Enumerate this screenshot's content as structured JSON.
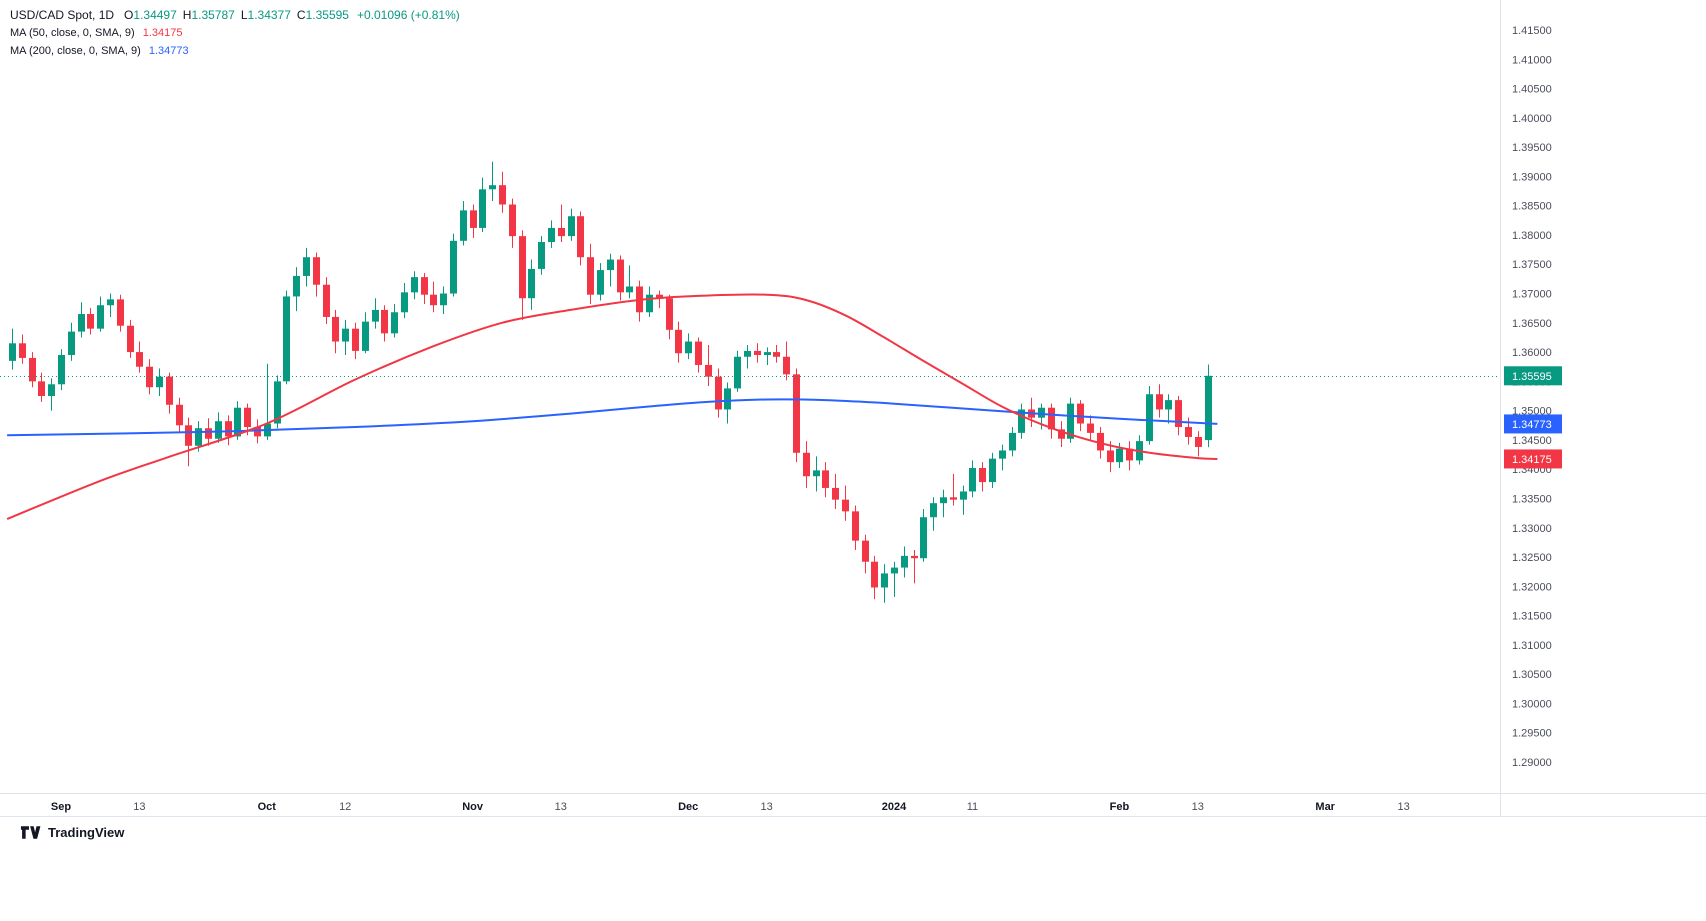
{
  "legend": {
    "symbol": "USD/CAD Spot, 1D",
    "ohlc": [
      {
        "label": "O",
        "value": "1.34497"
      },
      {
        "label": "H",
        "value": "1.35787"
      },
      {
        "label": "L",
        "value": "1.34377"
      },
      {
        "label": "C",
        "value": "1.35595"
      }
    ],
    "change": "+0.01096 (+0.81%)",
    "ma50": {
      "label": "MA (50, close, 0, SMA, 9)",
      "value": "1.34175"
    },
    "ma200": {
      "label": "MA (200, close, 0, SMA, 9)",
      "value": "1.34773"
    }
  },
  "footer": {
    "brand": "TradingView"
  },
  "colors": {
    "up": "#089981",
    "down": "#F23645",
    "ma50": "#F23645",
    "ma200": "#2962FF",
    "price_line": "#089981",
    "axis_text": "#4a4e59",
    "axis_line": "#e0e3eb",
    "text_dark": "#131722"
  },
  "chart_data": {
    "type": "candlestick",
    "title": "USD/CAD Spot, 1D",
    "symbol": "USD/CAD Spot",
    "timeframe": "1D",
    "last": {
      "open": 1.34497,
      "high": 1.35787,
      "low": 1.34377,
      "close": 1.35595,
      "change": "+0.01096",
      "change_pct": "+0.81%"
    },
    "price_line": 1.35595,
    "y_axis": {
      "min": 1.29,
      "max": 1.415,
      "step": 0.005,
      "decimals": 5
    },
    "x_axis": {
      "ticks": [
        {
          "label": "Sep",
          "i": 6,
          "major": true
        },
        {
          "label": "13",
          "i": 14,
          "major": false
        },
        {
          "label": "Oct",
          "i": 27,
          "major": true
        },
        {
          "label": "12",
          "i": 35,
          "major": false
        },
        {
          "label": "Nov",
          "i": 48,
          "major": true
        },
        {
          "label": "13",
          "i": 57,
          "major": false
        },
        {
          "label": "Dec",
          "i": 70,
          "major": true
        },
        {
          "label": "13",
          "i": 78,
          "major": false
        },
        {
          "label": "2024",
          "i": 91,
          "major": true
        },
        {
          "label": "11",
          "i": 99,
          "major": false
        },
        {
          "label": "Feb",
          "i": 114,
          "major": true
        },
        {
          "label": "13",
          "i": 122,
          "major": false
        },
        {
          "label": "Mar",
          "i": 135,
          "major": true
        },
        {
          "label": "13",
          "i": 143,
          "major": false
        }
      ]
    },
    "badges": [
      {
        "text": "1.35595",
        "price": 1.35595,
        "color": "#089981"
      },
      {
        "text": "1.34773",
        "price": 1.34773,
        "color": "#2962FF"
      },
      {
        "text": "1.34175",
        "price": 1.34175,
        "color": "#F23645"
      }
    ],
    "ma50": {
      "period": 50,
      "color": "#F23645",
      "points": [
        [
          0.5,
          1.3315
        ],
        [
          10,
          1.338
        ],
        [
          17,
          1.3421
        ],
        [
          27,
          1.3478
        ],
        [
          36,
          1.3553
        ],
        [
          44,
          1.361
        ],
        [
          51,
          1.365
        ],
        [
          58,
          1.3672
        ],
        [
          65,
          1.3689
        ],
        [
          71,
          1.3696
        ],
        [
          78,
          1.3698
        ],
        [
          82,
          1.3689
        ],
        [
          86,
          1.3663
        ],
        [
          90,
          1.3625
        ],
        [
          94,
          1.3585
        ],
        [
          98,
          1.3546
        ],
        [
          102,
          1.3507
        ],
        [
          106,
          1.3477
        ],
        [
          110,
          1.3454
        ],
        [
          114,
          1.3437
        ],
        [
          118,
          1.3426
        ],
        [
          122,
          1.3419
        ],
        [
          124,
          1.34175
        ]
      ]
    },
    "ma200": {
      "period": 200,
      "color": "#2962FF",
      "points": [
        [
          0.5,
          1.3458
        ],
        [
          12,
          1.3461
        ],
        [
          24,
          1.3465
        ],
        [
          36,
          1.3472
        ],
        [
          48,
          1.3482
        ],
        [
          58,
          1.3495
        ],
        [
          66,
          1.3507
        ],
        [
          72,
          1.3515
        ],
        [
          78,
          1.3519
        ],
        [
          84,
          1.3518
        ],
        [
          90,
          1.3513
        ],
        [
          96,
          1.3506
        ],
        [
          102,
          1.3499
        ],
        [
          108,
          1.3492
        ],
        [
          114,
          1.3486
        ],
        [
          120,
          1.3481
        ],
        [
          124,
          1.34773
        ]
      ]
    },
    "candles": [
      [
        1.3585,
        1.364,
        1.357,
        1.3615
      ],
      [
        1.3615,
        1.363,
        1.358,
        1.359
      ],
      [
        1.359,
        1.36,
        1.354,
        1.355
      ],
      [
        1.355,
        1.3565,
        1.3515,
        1.3525
      ],
      [
        1.3525,
        1.3555,
        1.35,
        1.3545
      ],
      [
        1.3545,
        1.3605,
        1.3535,
        1.3595
      ],
      [
        1.3595,
        1.365,
        1.3585,
        1.3635
      ],
      [
        1.3635,
        1.3685,
        1.3625,
        1.3665
      ],
      [
        1.3665,
        1.3675,
        1.363,
        1.364
      ],
      [
        1.364,
        1.3695,
        1.3635,
        1.368
      ],
      [
        1.368,
        1.37,
        1.366,
        1.369
      ],
      [
        1.369,
        1.3698,
        1.3635,
        1.3645
      ],
      [
        1.3645,
        1.3655,
        1.359,
        1.36
      ],
      [
        1.36,
        1.3618,
        1.3565,
        1.3575
      ],
      [
        1.3575,
        1.3588,
        1.3528,
        1.354
      ],
      [
        1.354,
        1.3572,
        1.3525,
        1.3558
      ],
      [
        1.3558,
        1.3565,
        1.3495,
        1.351
      ],
      [
        1.351,
        1.3522,
        1.3462,
        1.3475
      ],
      [
        1.3475,
        1.3488,
        1.3405,
        1.344
      ],
      [
        1.344,
        1.3482,
        1.343,
        1.347
      ],
      [
        1.347,
        1.3487,
        1.344,
        1.3452
      ],
      [
        1.3452,
        1.3497,
        1.3445,
        1.3482
      ],
      [
        1.3482,
        1.3492,
        1.3441,
        1.3456
      ],
      [
        1.3456,
        1.3516,
        1.345,
        1.3505
      ],
      [
        1.3505,
        1.3512,
        1.3458,
        1.3472
      ],
      [
        1.3472,
        1.3485,
        1.3444,
        1.3456
      ],
      [
        1.3456,
        1.358,
        1.345,
        1.3478
      ],
      [
        1.3478,
        1.356,
        1.347,
        1.355
      ],
      [
        1.355,
        1.3705,
        1.3545,
        1.3695
      ],
      [
        1.3695,
        1.3745,
        1.367,
        1.373
      ],
      [
        1.373,
        1.3778,
        1.3712,
        1.3762
      ],
      [
        1.3762,
        1.377,
        1.3695,
        1.3715
      ],
      [
        1.3715,
        1.3728,
        1.3648,
        1.366
      ],
      [
        1.366,
        1.3672,
        1.3598,
        1.3618
      ],
      [
        1.3618,
        1.3655,
        1.3595,
        1.364
      ],
      [
        1.364,
        1.365,
        1.3588,
        1.3602
      ],
      [
        1.3602,
        1.3668,
        1.3598,
        1.3652
      ],
      [
        1.3652,
        1.3692,
        1.364,
        1.3672
      ],
      [
        1.3672,
        1.368,
        1.3618,
        1.3632
      ],
      [
        1.3632,
        1.3682,
        1.3625,
        1.3668
      ],
      [
        1.3668,
        1.3718,
        1.3658,
        1.3702
      ],
      [
        1.3702,
        1.3738,
        1.369,
        1.3728
      ],
      [
        1.3728,
        1.3735,
        1.3682,
        1.3698
      ],
      [
        1.3698,
        1.372,
        1.3668,
        1.368
      ],
      [
        1.368,
        1.3712,
        1.3665,
        1.37
      ],
      [
        1.37,
        1.3802,
        1.3695,
        1.379
      ],
      [
        1.379,
        1.3858,
        1.3782,
        1.3842
      ],
      [
        1.3842,
        1.3852,
        1.3795,
        1.3812
      ],
      [
        1.3812,
        1.3898,
        1.3805,
        1.3878
      ],
      [
        1.3878,
        1.3925,
        1.3858,
        1.3885
      ],
      [
        1.3885,
        1.3908,
        1.3838,
        1.3852
      ],
      [
        1.3852,
        1.3862,
        1.3778,
        1.3798
      ],
      [
        1.3798,
        1.3808,
        1.3655,
        1.3692
      ],
      [
        1.3692,
        1.3758,
        1.3672,
        1.3742
      ],
      [
        1.3742,
        1.3798,
        1.3732,
        1.3788
      ],
      [
        1.3788,
        1.3825,
        1.3778,
        1.3812
      ],
      [
        1.3812,
        1.3852,
        1.3788,
        1.3798
      ],
      [
        1.3798,
        1.3845,
        1.379,
        1.3832
      ],
      [
        1.3832,
        1.384,
        1.3748,
        1.3762
      ],
      [
        1.3762,
        1.3785,
        1.3682,
        1.3698
      ],
      [
        1.3698,
        1.3752,
        1.3688,
        1.374
      ],
      [
        1.374,
        1.3768,
        1.3712,
        1.3758
      ],
      [
        1.3758,
        1.3765,
        1.3688,
        1.3702
      ],
      [
        1.3702,
        1.3748,
        1.3692,
        1.3712
      ],
      [
        1.3712,
        1.3722,
        1.3652,
        1.3668
      ],
      [
        1.3668,
        1.3712,
        1.366,
        1.3698
      ],
      [
        1.3698,
        1.3705,
        1.3675,
        1.3692
      ],
      [
        1.3692,
        1.3698,
        1.3622,
        1.3638
      ],
      [
        1.3638,
        1.3652,
        1.3582,
        1.3598
      ],
      [
        1.3598,
        1.3632,
        1.3588,
        1.3618
      ],
      [
        1.3618,
        1.3625,
        1.3565,
        1.3578
      ],
      [
        1.3578,
        1.3612,
        1.3542,
        1.3558
      ],
      [
        1.3558,
        1.3572,
        1.3488,
        1.3502
      ],
      [
        1.3502,
        1.3548,
        1.3478,
        1.3538
      ],
      [
        1.3538,
        1.3602,
        1.3532,
        1.3592
      ],
      [
        1.3592,
        1.3612,
        1.3572,
        1.3602
      ],
      [
        1.3602,
        1.3615,
        1.3582,
        1.3595
      ],
      [
        1.3595,
        1.3608,
        1.3578,
        1.36
      ],
      [
        1.36,
        1.3612,
        1.3582,
        1.3592
      ],
      [
        1.3592,
        1.3618,
        1.3552,
        1.3562
      ],
      [
        1.3562,
        1.3572,
        1.3412,
        1.3428
      ],
      [
        1.3428,
        1.3448,
        1.3368,
        1.3388
      ],
      [
        1.3388,
        1.3422,
        1.3362,
        1.3398
      ],
      [
        1.3398,
        1.3412,
        1.3352,
        1.3368
      ],
      [
        1.3368,
        1.3392,
        1.3332,
        1.3348
      ],
      [
        1.3348,
        1.3372,
        1.3312,
        1.3328
      ],
      [
        1.3328,
        1.3338,
        1.3262,
        1.3278
      ],
      [
        1.3278,
        1.3288,
        1.3222,
        1.3242
      ],
      [
        1.3242,
        1.3252,
        1.3178,
        1.3198
      ],
      [
        1.3198,
        1.3238,
        1.3172,
        1.3222
      ],
      [
        1.3222,
        1.3242,
        1.3182,
        1.3232
      ],
      [
        1.3232,
        1.3268,
        1.3215,
        1.3252
      ],
      [
        1.3252,
        1.3262,
        1.3205,
        1.3248
      ],
      [
        1.3248,
        1.3332,
        1.3242,
        1.3318
      ],
      [
        1.3318,
        1.3352,
        1.3295,
        1.3342
      ],
      [
        1.3342,
        1.3365,
        1.3318,
        1.3352
      ],
      [
        1.3352,
        1.3392,
        1.3338,
        1.3348
      ],
      [
        1.3348,
        1.3372,
        1.3322,
        1.3362
      ],
      [
        1.3362,
        1.3415,
        1.3352,
        1.3402
      ],
      [
        1.3402,
        1.3412,
        1.3362,
        1.3378
      ],
      [
        1.3378,
        1.3428,
        1.3368,
        1.3418
      ],
      [
        1.3418,
        1.3442,
        1.3398,
        1.3432
      ],
      [
        1.3432,
        1.3472,
        1.3422,
        1.3462
      ],
      [
        1.3462,
        1.3512,
        1.3452,
        1.3502
      ],
      [
        1.3502,
        1.3522,
        1.3472,
        1.3488
      ],
      [
        1.3488,
        1.3512,
        1.3468,
        1.3505
      ],
      [
        1.3505,
        1.3512,
        1.3452,
        1.3468
      ],
      [
        1.3468,
        1.3482,
        1.3438,
        1.3452
      ],
      [
        1.3452,
        1.3522,
        1.3445,
        1.3512
      ],
      [
        1.3512,
        1.3518,
        1.3465,
        1.3478
      ],
      [
        1.3478,
        1.3492,
        1.3448,
        1.3462
      ],
      [
        1.3462,
        1.3472,
        1.3418,
        1.3432
      ],
      [
        1.3432,
        1.3448,
        1.3395,
        1.3412
      ],
      [
        1.3412,
        1.3445,
        1.3402,
        1.3435
      ],
      [
        1.3435,
        1.3448,
        1.3398,
        1.3415
      ],
      [
        1.3415,
        1.3458,
        1.3408,
        1.3448
      ],
      [
        1.3448,
        1.3542,
        1.3442,
        1.3528
      ],
      [
        1.3528,
        1.3545,
        1.3488,
        1.3502
      ],
      [
        1.3502,
        1.3528,
        1.3478,
        1.3518
      ],
      [
        1.3518,
        1.3525,
        1.3458,
        1.3472
      ],
      [
        1.3472,
        1.3488,
        1.3442,
        1.3455
      ],
      [
        1.3455,
        1.3465,
        1.3422,
        1.3438
      ],
      [
        1.34497,
        1.35787,
        1.34377,
        1.35595
      ]
    ]
  }
}
